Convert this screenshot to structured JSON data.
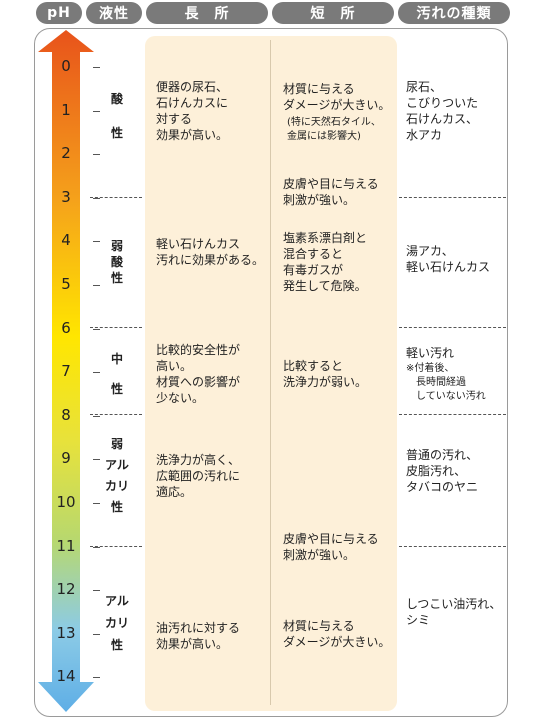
{
  "headers": {
    "ph": "pH",
    "nature": "液性",
    "merit": "長　所",
    "demerit": "短　所",
    "dirt": "汚れの種類"
  },
  "chart_data": {
    "type": "table",
    "ph_scale": [
      "0",
      "1",
      "2",
      "3",
      "4",
      "5",
      "6",
      "7",
      "8",
      "9",
      "10",
      "11",
      "12",
      "13",
      "14"
    ],
    "nature_labels": [
      "酸\n性",
      "弱\n酸\n性",
      "中\n性",
      "弱\nアル\nカリ\n性",
      "アル\nカリ\n性"
    ],
    "rows": [
      {
        "nature": "酸性",
        "merit": "便器の尿石、\n石けんカスに\n対する\n効果が高い。",
        "demerit_1": "材質に与える\nダメージが大きい。",
        "demerit_1_note": "(特に天然石タイル、\n金属には影響大)",
        "demerit_2": "皮膚や目に与える\n刺激が強い。",
        "dirt": "尿石、\nこびりついた\n石けんカス、\n水アカ"
      },
      {
        "nature": "弱酸性",
        "merit": "軽い石けんカス\n汚れに効果がある。",
        "demerit": "塩素系漂白剤と\n混合すると\n有毒ガスが\n発生して危険。",
        "dirt": "湯アカ、\n軽い石けんカス"
      },
      {
        "nature": "中性",
        "merit": "比較的安全性が\n高い。\n材質への影響が\n少ない。",
        "demerit": "比較すると\n洗浄力が弱い。",
        "dirt": "軽い汚れ",
        "dirt_note": "※付着後、\n　長時間経過\n　していない汚れ"
      },
      {
        "nature": "弱アルカリ性",
        "merit": "洗浄力が高く、\n広範囲の汚れに\n適応。",
        "dirt": "普通の汚れ、\n皮脂汚れ、\nタバコのヤニ"
      },
      {
        "nature": "アルカリ性",
        "merit": "油汚れに対する\n効果が高い。",
        "demerit_1": "皮膚や目に与える\n刺激が強い。",
        "demerit_2": "材質に与える\nダメージが大きい。",
        "dirt": "しつこい油汚れ、\nシミ"
      }
    ]
  },
  "colors": {
    "header_bg": "#7a7a7a",
    "highlight_bg": "#fdf0d9",
    "gradient": [
      "#e8531b",
      "#f5a21b",
      "#fff000",
      "#c8dc6a",
      "#8ccbe6",
      "#6ab4e6"
    ]
  }
}
